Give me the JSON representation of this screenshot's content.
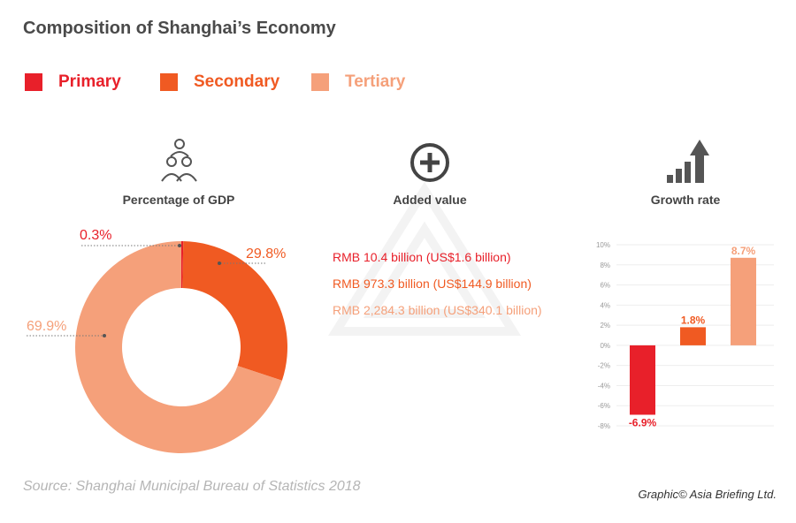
{
  "title": "Composition of Shanghai’s Economy",
  "colors": {
    "primary": "#E8202A",
    "secondary": "#F05A22",
    "tertiary": "#F5A07A"
  },
  "legend": [
    {
      "label": "Primary",
      "color": "#E8202A"
    },
    {
      "label": "Secondary",
      "color": "#F05A22"
    },
    {
      "label": "Tertiary",
      "color": "#F5A07A"
    }
  ],
  "sections": {
    "gdp": "Percentage of GDP",
    "added": "Added value",
    "growth": "Growth rate"
  },
  "added_values": [
    "RMB 10.4 billion (US$1.6 billion)",
    "RMB 973.3 billion (US$144.9 billion)",
    "RMB 2,284.3 billion (US$340.1 billion)"
  ],
  "chart_data": [
    {
      "type": "pie",
      "title": "Percentage of GDP",
      "categories": [
        "Primary",
        "Secondary",
        "Tertiary"
      ],
      "values": [
        0.3,
        29.8,
        69.9
      ],
      "labels": [
        "0.3%",
        "29.8%",
        "69.9%"
      ]
    },
    {
      "type": "bar",
      "title": "Growth rate",
      "categories": [
        "Primary",
        "Secondary",
        "Tertiary"
      ],
      "values": [
        -6.9,
        1.8,
        8.7
      ],
      "labels": [
        "-6.9%",
        "1.8%",
        "8.7%"
      ],
      "ylim": [
        -8,
        10
      ],
      "yticks": [
        "10%",
        "8%",
        "6%",
        "4%",
        "2%",
        "0%",
        "-2%",
        "-4%",
        "-6%",
        "-8%"
      ],
      "grid": true
    }
  ],
  "source": "Source: Shanghai Municipal Bureau of Statistics 2018",
  "credit": "Graphic© Asia Briefing Ltd."
}
